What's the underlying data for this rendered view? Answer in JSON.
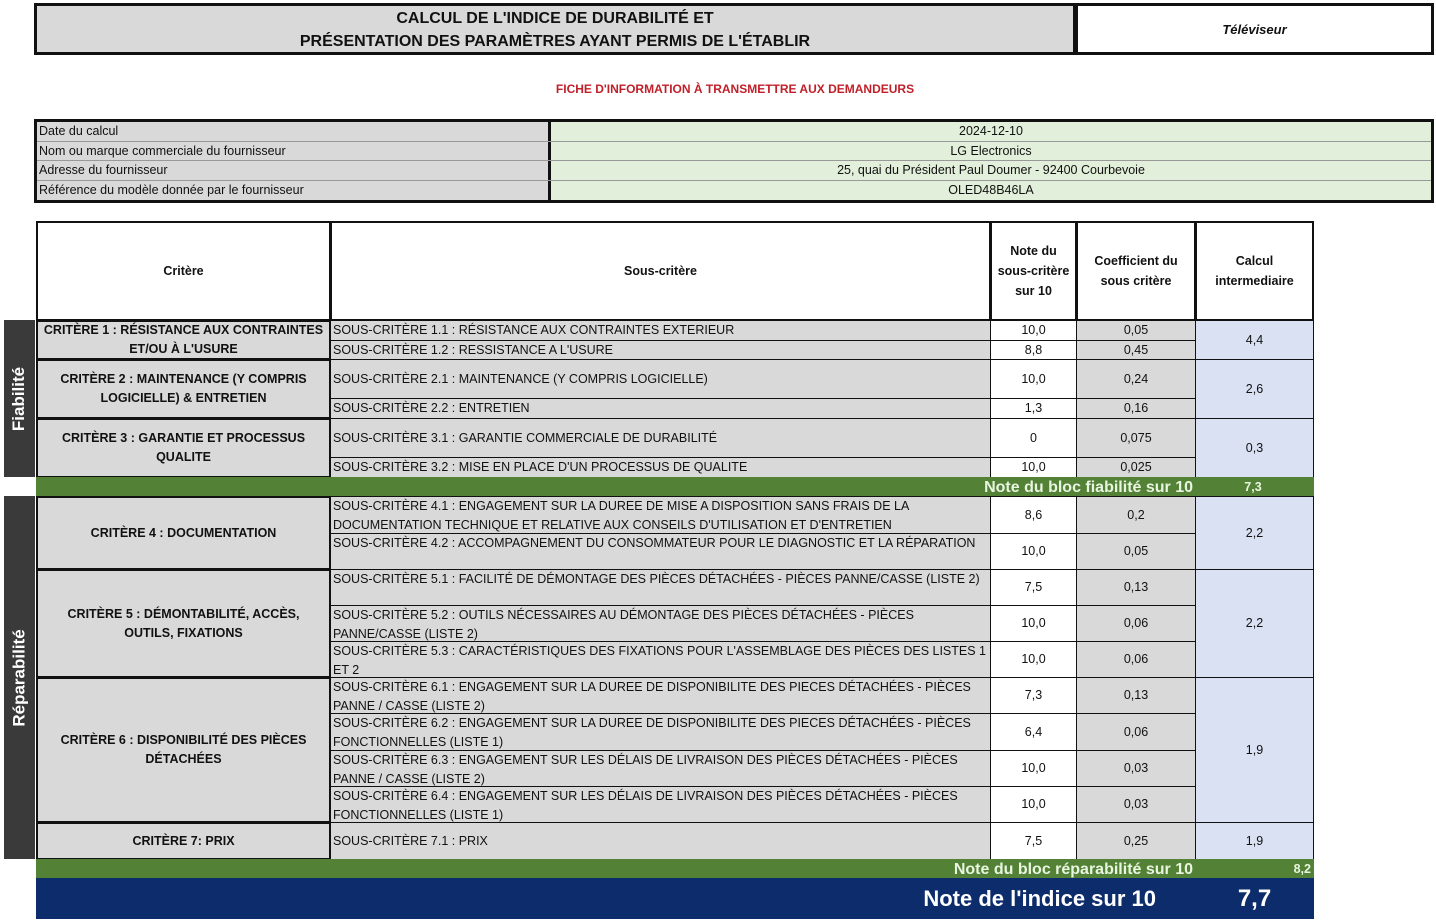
{
  "header": {
    "title_line1": "CALCUL DE L'INDICE DE DURABILITÉ ET",
    "title_line2": "PRÉSENTATION DES PARAMÈTRES AYANT PERMIS DE L'ÉTABLIR",
    "product": "Téléviseur",
    "subtitle": "FICHE D'INFORMATION À TRANSMETTRE AUX DEMANDEURS"
  },
  "info": [
    {
      "label": "Date du calcul",
      "value": "2024-12-10"
    },
    {
      "label": "Nom ou marque commerciale du fournisseur",
      "value": "LG Electronics"
    },
    {
      "label": "Adresse du fournisseur",
      "value": "25, quai du Président Paul Doumer - 92400 Courbevoie"
    },
    {
      "label": "Référence du modèle donnée par le fournisseur",
      "value": "OLED48B46LA"
    }
  ],
  "columns": [
    "Critère",
    "Sous-critère",
    "Note du sous-critère sur 10",
    "Coefficient du sous critère",
    "Calcul intermediaire"
  ],
  "blocks": [
    {
      "name": "Fiabilité",
      "total_label": "Note du bloc fiabilité sur 10",
      "total": "7,3",
      "criteria": [
        {
          "label": "CRITÈRE 1 : RÉSISTANCE AUX CONTRAINTES ET/OU À L'USURE",
          "calc": "4,4",
          "subs": [
            {
              "label": "SOUS-CRITÈRE 1.1 : RÉSISTANCE AUX CONTRAINTES EXTERIEUR",
              "note": "10,0",
              "coef": "0,05"
            },
            {
              "label": "SOUS-CRITÈRE 1.2 : RESSISTANCE A L'USURE",
              "note": "8,8",
              "coef": "0,45"
            }
          ]
        },
        {
          "label": "CRITÈRE 2 : MAINTENANCE (Y COMPRIS LOGICIELLE) & ENTRETIEN",
          "calc": "2,6",
          "subs": [
            {
              "label": "SOUS-CRITÈRE 2.1 : MAINTENANCE (Y COMPRIS LOGICIELLE)",
              "note": "10,0",
              "coef": "0,24"
            },
            {
              "label": "SOUS-CRITÈRE 2.2 : ENTRETIEN",
              "note": "1,3",
              "coef": "0,16"
            }
          ]
        },
        {
          "label": "CRITÈRE 3 : GARANTIE ET PROCESSUS QUALITE",
          "calc": "0,3",
          "subs": [
            {
              "label": "SOUS-CRITÈRE 3.1 : GARANTIE COMMERCIALE DE DURABILITÉ",
              "note": "0",
              "coef": "0,075"
            },
            {
              "label": "SOUS-CRITÈRE 3.2 : MISE EN PLACE D'UN PROCESSUS DE QUALITE",
              "note": "10,0",
              "coef": "0,025"
            }
          ]
        }
      ]
    },
    {
      "name": "Réparabilité",
      "total_label": "Note du bloc réparabilité sur 10",
      "total": "8,2",
      "criteria": [
        {
          "label": "CRITÈRE 4 : DOCUMENTATION",
          "calc": "2,2",
          "subs": [
            {
              "label": "SOUS-CRITÈRE 4.1 : ENGAGEMENT SUR LA DUREE DE MISE A DISPOSITION SANS FRAIS DE LA DOCUMENTATION TECHNIQUE ET RELATIVE AUX CONSEILS D'UTILISATION ET D'ENTRETIEN",
              "note": "8,6",
              "coef": "0,2"
            },
            {
              "label": "SOUS-CRITÈRE 4.2 : ACCOMPAGNEMENT DU CONSOMMATEUR POUR LE DIAGNOSTIC ET LA RÉPARATION",
              "note": "10,0",
              "coef": "0,05"
            }
          ]
        },
        {
          "label": "CRITÈRE 5 : DÉMONTABILITÉ, ACCÈS, OUTILS, FIXATIONS",
          "calc": "2,2",
          "subs": [
            {
              "label": "SOUS-CRITÈRE 5.1 : FACILITÉ DE DÉMONTAGE DES PIÈCES DÉTACHÉES - PIÈCES PANNE/CASSE (LISTE 2)",
              "note": "7,5",
              "coef": "0,13"
            },
            {
              "label": "SOUS-CRITÈRE 5.2 : OUTILS NÉCESSAIRES AU DÉMONTAGE DES PIÈCES DÉTACHÉES - PIÈCES PANNE/CASSE (LISTE 2)",
              "note": "10,0",
              "coef": "0,06"
            },
            {
              "label": "SOUS-CRITÈRE 5.3 : CARACTÉRISTIQUES DES FIXATIONS POUR L'ASSEMBLAGE DES PIÈCES DES LISTES 1 ET 2",
              "note": "10,0",
              "coef": "0,06"
            }
          ]
        },
        {
          "label": "CRITÈRE 6 : DISPONIBILITÉ DES PIÈCES DÉTACHÉES",
          "calc": "1,9",
          "subs": [
            {
              "label": "SOUS-CRITÈRE 6.1 : ENGAGEMENT SUR LA DUREE DE DISPONIBILITE DES PIECES DÉTACHÉES - PIÈCES PANNE / CASSE (LISTE 2)",
              "note": "7,3",
              "coef": "0,13"
            },
            {
              "label": "SOUS-CRITÈRE 6.2 : ENGAGEMENT SUR LA DUREE DE DISPONIBILITE DES PIECES DÉTACHÉES - PIÈCES FONCTIONNELLES (LISTE 1)",
              "note": "6,4",
              "coef": "0,06"
            },
            {
              "label": "SOUS-CRITÈRE 6.3 : ENGAGEMENT SUR LES DÉLAIS DE LIVRAISON DES PIÈCES DÉTACHÉES - PIÈCES PANNE / CASSE (LISTE 2)",
              "note": "10,0",
              "coef": "0,03"
            },
            {
              "label": "SOUS-CRITÈRE 6.4 : ENGAGEMENT SUR LES DÉLAIS DE LIVRAISON DES PIÈCES DÉTACHÉES - PIÈCES FONCTIONNELLES (LISTE 1)",
              "note": "10,0",
              "coef": "0,03"
            }
          ]
        },
        {
          "label": "CRITÈRE 7: PRIX",
          "calc": "1,9",
          "subs": [
            {
              "label": "SOUS-CRITÈRE 7.1 : PRIX",
              "note": "7,5",
              "coef": "0,25"
            }
          ]
        }
      ]
    }
  ],
  "final": {
    "label": "Note de l'indice sur 10",
    "value": "7,7"
  },
  "colors": {
    "total_green": "#538135",
    "final_navy": "#0d2c6b",
    "calc_blue": "#dae1f3",
    "subtitle_red": "#c0202a"
  }
}
